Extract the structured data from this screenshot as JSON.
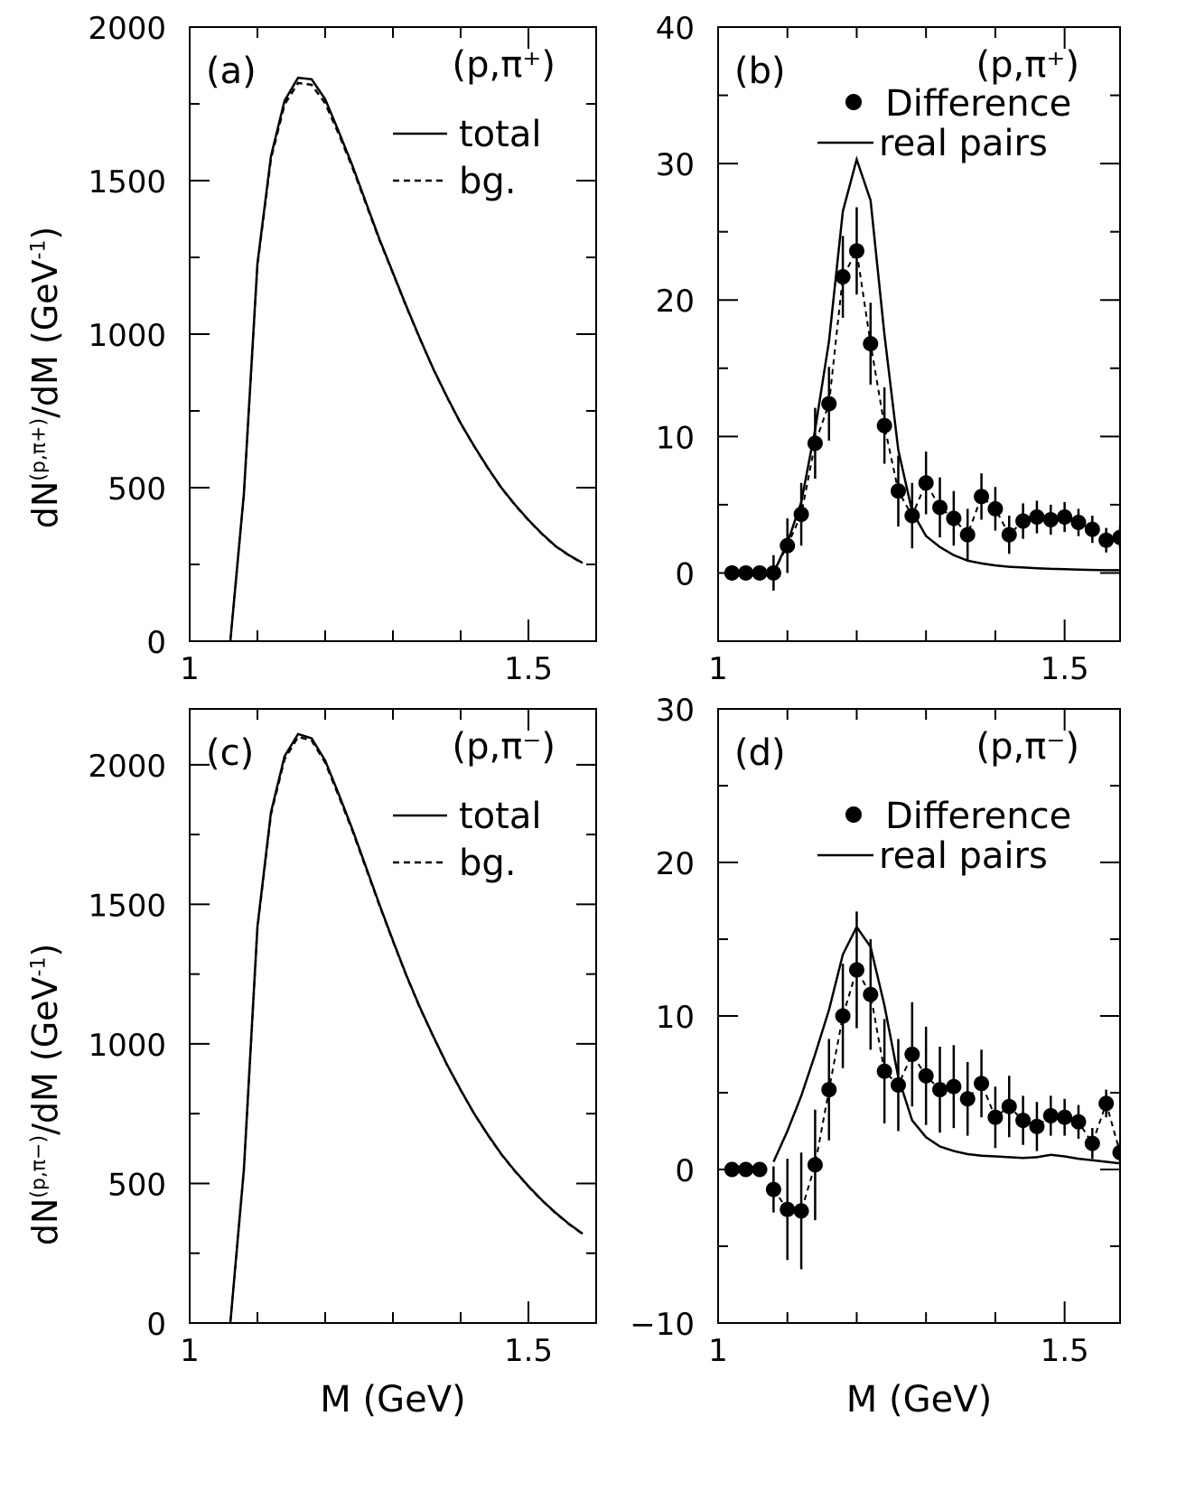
{
  "chart_data": [
    {
      "type": "line",
      "panel_label": "(a)",
      "reaction": "(p,π⁺)",
      "xlabel": "",
      "ylabel_parts": [
        "dN",
        "(p,π+)",
        "/dM (GeV",
        "-1",
        ")"
      ],
      "xlim": [
        1.0,
        1.6
      ],
      "ylim": [
        0,
        2000
      ],
      "yticks": [
        0,
        500,
        1000,
        1500,
        2000
      ],
      "yticklabels": [
        "0",
        "500",
        "1000",
        "1500",
        "2000"
      ],
      "xticks": [
        1.0,
        1.5
      ],
      "xticklabels": [
        "1",
        "1.5"
      ],
      "legend": [
        "total",
        "bg."
      ],
      "series": [
        {
          "name": "total",
          "style": "solid",
          "x": [
            1.06,
            1.08,
            1.1,
            1.12,
            1.14,
            1.16,
            1.18,
            1.2,
            1.22,
            1.24,
            1.26,
            1.28,
            1.3,
            1.32,
            1.34,
            1.36,
            1.38,
            1.4,
            1.42,
            1.44,
            1.46,
            1.48,
            1.5,
            1.52,
            1.54,
            1.56,
            1.58
          ],
          "y": [
            0,
            480,
            1230,
            1580,
            1760,
            1835,
            1830,
            1765,
            1660,
            1550,
            1430,
            1310,
            1200,
            1090,
            985,
            885,
            795,
            710,
            635,
            565,
            500,
            445,
            395,
            350,
            310,
            280,
            255
          ]
        },
        {
          "name": "bg.",
          "style": "dashed",
          "x": [
            1.06,
            1.08,
            1.1,
            1.12,
            1.14,
            1.16,
            1.18,
            1.2,
            1.22,
            1.24,
            1.26,
            1.28,
            1.3,
            1.32,
            1.34,
            1.36,
            1.38,
            1.4,
            1.42,
            1.44,
            1.46,
            1.48,
            1.5,
            1.52,
            1.54,
            1.56,
            1.58
          ],
          "y": [
            0,
            478,
            1225,
            1572,
            1748,
            1818,
            1812,
            1752,
            1652,
            1544,
            1426,
            1307,
            1198,
            1088,
            984,
            884,
            794,
            709,
            634,
            564,
            499,
            444,
            394,
            349,
            309,
            279,
            254
          ]
        }
      ]
    },
    {
      "type": "scatter",
      "panel_label": "(b)",
      "reaction": "(p,π⁺)",
      "xlabel": "",
      "xlim": [
        1.0,
        1.58
      ],
      "ylim": [
        -5,
        40
      ],
      "yticks": [
        0,
        10,
        20,
        30,
        40
      ],
      "yticklabels": [
        "0",
        "10",
        "20",
        "30",
        "40"
      ],
      "xticks": [
        1.0,
        1.5
      ],
      "xticklabels": [
        "1",
        "1.5"
      ],
      "legend": [
        "Difference",
        "real pairs"
      ],
      "series": [
        {
          "name": "Difference",
          "style": "points",
          "x": [
            1.02,
            1.04,
            1.06,
            1.08,
            1.1,
            1.12,
            1.14,
            1.16,
            1.18,
            1.2,
            1.22,
            1.24,
            1.26,
            1.28,
            1.3,
            1.32,
            1.34,
            1.36,
            1.38,
            1.4,
            1.42,
            1.44,
            1.46,
            1.48,
            1.5,
            1.52,
            1.54,
            1.56,
            1.58
          ],
          "y": [
            0,
            0,
            0,
            0,
            2,
            4.3,
            9.5,
            12.4,
            21.7,
            23.6,
            16.8,
            10.8,
            6,
            4.2,
            6.6,
            4.8,
            4,
            2.8,
            5.6,
            4.7,
            2.8,
            3.8,
            4.1,
            3.9,
            4.1,
            3.7,
            3.2,
            2.4,
            2.6
          ],
          "yerr": [
            0,
            0,
            0,
            1.3,
            2.0,
            2.3,
            2.6,
            2.7,
            3.0,
            3.2,
            3.0,
            2.8,
            2.6,
            2.4,
            2.3,
            2.2,
            2.0,
            1.9,
            1.7,
            1.6,
            1.4,
            1.3,
            1.2,
            1.1,
            1.1,
            1.0,
            1.0,
            0.9,
            0.8
          ]
        },
        {
          "name": "real pairs",
          "style": "solid",
          "x": [
            1.08,
            1.1,
            1.12,
            1.14,
            1.16,
            1.18,
            1.2,
            1.22,
            1.24,
            1.26,
            1.28,
            1.3,
            1.32,
            1.34,
            1.36,
            1.38,
            1.4,
            1.42,
            1.44,
            1.46,
            1.48,
            1.5,
            1.52,
            1.54,
            1.56,
            1.58
          ],
          "y": [
            0,
            2.2,
            5.2,
            10.5,
            17,
            26.5,
            30.3,
            27.3,
            17.5,
            9,
            4.5,
            2.7,
            1.9,
            1.3,
            0.9,
            0.7,
            0.55,
            0.45,
            0.4,
            0.35,
            0.3,
            0.28,
            0.25,
            0.22,
            0.2,
            0.2
          ]
        }
      ]
    },
    {
      "type": "line",
      "panel_label": "(c)",
      "reaction": "(p,π⁻)",
      "xlabel": "M (GeV)",
      "ylabel_parts": [
        "dN",
        "(p,π−)",
        "/dM (GeV",
        "-1",
        ")"
      ],
      "xlim": [
        1.0,
        1.6
      ],
      "ylim": [
        0,
        2200
      ],
      "yticks": [
        0,
        500,
        1000,
        1500,
        2000
      ],
      "yticklabels": [
        "0",
        "500",
        "1000",
        "1500",
        "2000"
      ],
      "xticks": [
        1.0,
        1.5
      ],
      "xticklabels": [
        "1",
        "1.5"
      ],
      "legend": [
        "total",
        "bg."
      ],
      "series": [
        {
          "name": "total",
          "style": "solid",
          "x": [
            1.06,
            1.08,
            1.1,
            1.12,
            1.14,
            1.16,
            1.18,
            1.2,
            1.22,
            1.24,
            1.26,
            1.28,
            1.3,
            1.32,
            1.34,
            1.36,
            1.38,
            1.4,
            1.42,
            1.44,
            1.46,
            1.48,
            1.5,
            1.52,
            1.54,
            1.56,
            1.58
          ],
          "y": [
            0,
            550,
            1420,
            1830,
            2030,
            2110,
            2095,
            2015,
            1895,
            1770,
            1635,
            1500,
            1370,
            1245,
            1130,
            1025,
            925,
            835,
            750,
            675,
            605,
            545,
            490,
            440,
            395,
            355,
            320
          ]
        },
        {
          "name": "bg.",
          "style": "dashed",
          "x": [
            1.06,
            1.08,
            1.1,
            1.12,
            1.14,
            1.16,
            1.18,
            1.2,
            1.22,
            1.24,
            1.26,
            1.28,
            1.3,
            1.32,
            1.34,
            1.36,
            1.38,
            1.4,
            1.42,
            1.44,
            1.46,
            1.48,
            1.5,
            1.52,
            1.54,
            1.56,
            1.58
          ],
          "y": [
            0,
            548,
            1415,
            1823,
            2020,
            2100,
            2087,
            2008,
            1888,
            1765,
            1631,
            1497,
            1368,
            1243,
            1128,
            1024,
            924,
            834,
            749,
            674,
            604,
            544,
            489,
            439,
            394,
            354,
            319
          ]
        }
      ]
    },
    {
      "type": "scatter",
      "panel_label": "(d)",
      "reaction": "(p,π⁻)",
      "xlabel": "M (GeV)",
      "xlim": [
        1.0,
        1.58
      ],
      "ylim": [
        -10,
        30
      ],
      "yticks": [
        -10,
        0,
        10,
        20,
        30
      ],
      "yticklabels": [
        "−10",
        "0",
        "10",
        "20",
        "30"
      ],
      "xticks": [
        1.0,
        1.5
      ],
      "xticklabels": [
        "1",
        "1.5"
      ],
      "legend": [
        "Difference",
        "real pairs"
      ],
      "series": [
        {
          "name": "Difference",
          "style": "points",
          "x": [
            1.02,
            1.04,
            1.06,
            1.08,
            1.1,
            1.12,
            1.14,
            1.16,
            1.18,
            1.2,
            1.22,
            1.24,
            1.26,
            1.28,
            1.3,
            1.32,
            1.34,
            1.36,
            1.38,
            1.4,
            1.42,
            1.44,
            1.46,
            1.48,
            1.5,
            1.52,
            1.54,
            1.56,
            1.58
          ],
          "y": [
            0,
            0,
            0,
            -1.3,
            -2.6,
            -2.7,
            0.3,
            5.2,
            10,
            13,
            11.4,
            6.4,
            5.5,
            7.5,
            6.1,
            5.2,
            5.4,
            4.6,
            5.6,
            3.4,
            4.1,
            3.2,
            2.8,
            3.5,
            3.4,
            3.1,
            1.7,
            4.3,
            1.1
          ],
          "yerr": [
            0,
            0,
            0,
            1.5,
            3.3,
            3.8,
            3.6,
            3.3,
            3.4,
            3.8,
            3.6,
            3.4,
            3.0,
            3.4,
            3.2,
            2.8,
            2.7,
            2.4,
            2.2,
            2.0,
            2.0,
            1.6,
            1.6,
            1.3,
            1.2,
            1.1,
            1.0,
            0.9,
            0.7
          ]
        },
        {
          "name": "real pairs",
          "style": "solid",
          "x": [
            1.08,
            1.1,
            1.12,
            1.14,
            1.16,
            1.18,
            1.2,
            1.22,
            1.24,
            1.26,
            1.28,
            1.3,
            1.32,
            1.34,
            1.36,
            1.38,
            1.4,
            1.42,
            1.44,
            1.46,
            1.48,
            1.5,
            1.52,
            1.54,
            1.56,
            1.58
          ],
          "y": [
            0.5,
            2.5,
            4.8,
            7.5,
            10.4,
            14,
            15.8,
            14.5,
            10.7,
            6,
            3.2,
            2.1,
            1.5,
            1.2,
            1.0,
            0.9,
            0.85,
            0.8,
            0.75,
            0.8,
            0.95,
            0.85,
            0.7,
            0.6,
            0.5,
            0.4
          ]
        }
      ]
    }
  ]
}
